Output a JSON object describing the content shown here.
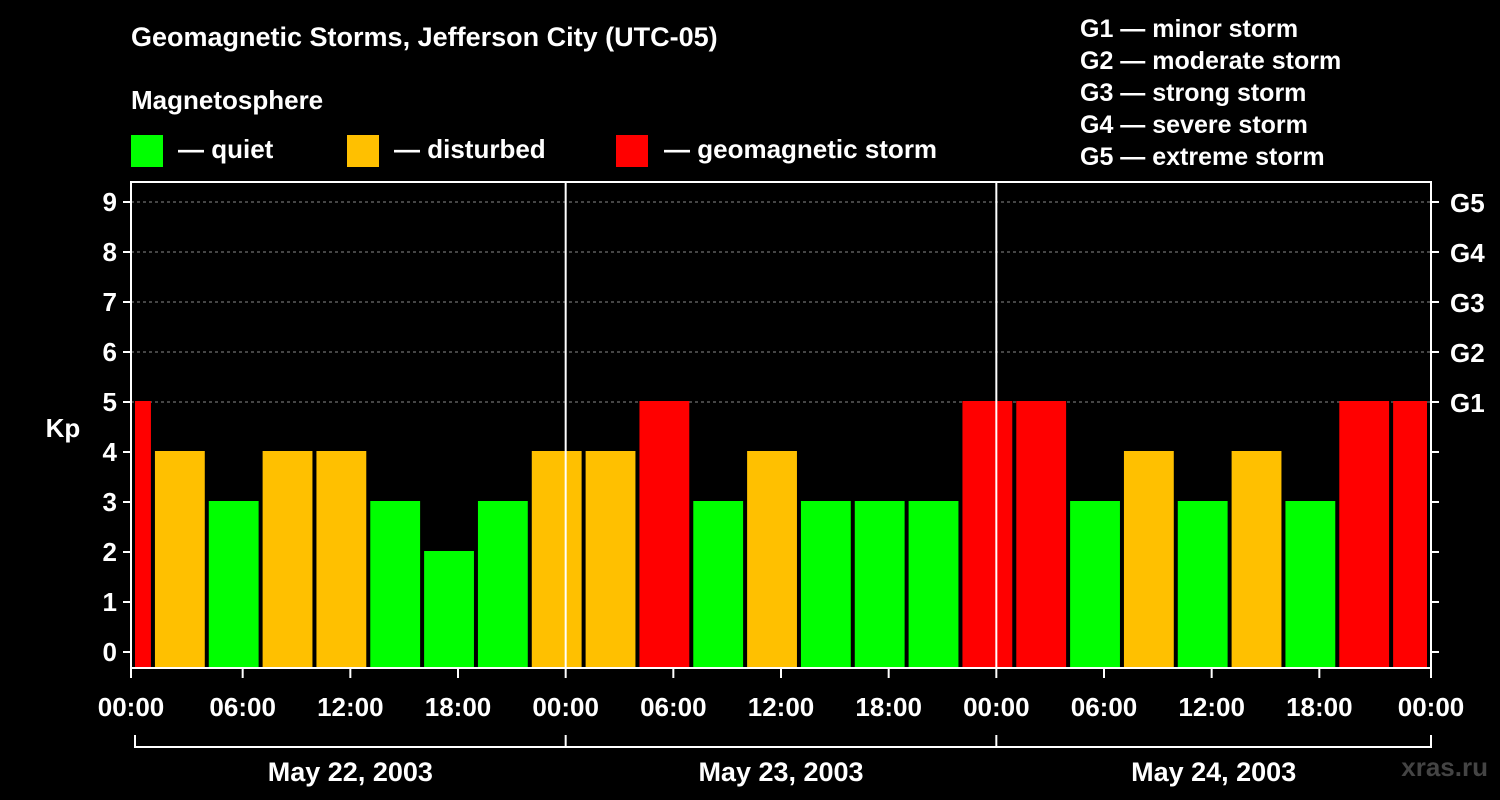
{
  "header": {
    "title": "Geomagnetic Storms, Jefferson City (UTC-05)",
    "magnetosphere_label": "Magnetosphere"
  },
  "legend": {
    "quiet": {
      "label": "— quiet",
      "color": "#00ff00"
    },
    "disturbed": {
      "label": "— disturbed",
      "color": "#ffc000"
    },
    "storm": {
      "label": "— geomagnetic storm",
      "color": "#ff0000"
    }
  },
  "g_scale": [
    "G1 — minor storm",
    "G2 — moderate storm",
    "G3 — strong storm",
    "G4 — severe storm",
    "G5 — extreme storm"
  ],
  "watermark": "xras.ru",
  "chart_data": {
    "type": "bar",
    "ylabel": "Kp",
    "ylim": [
      0,
      9
    ],
    "yticks": [
      "0",
      "1",
      "2",
      "3",
      "4",
      "5",
      "6",
      "7",
      "8",
      "9"
    ],
    "right_ticks": [
      {
        "kp": 5,
        "label": "G1"
      },
      {
        "kp": 6,
        "label": "G2"
      },
      {
        "kp": 7,
        "label": "G3"
      },
      {
        "kp": 8,
        "label": "G4"
      },
      {
        "kp": 9,
        "label": "G5"
      }
    ],
    "grid": "dashed horizontal at 5–9",
    "x_tick_labels": [
      "00:00",
      "06:00",
      "12:00",
      "18:00",
      "00:00",
      "06:00",
      "12:00",
      "18:00",
      "00:00",
      "06:00",
      "12:00",
      "18:00",
      "00:00"
    ],
    "days": [
      "May 22, 2003",
      "May 23, 2003",
      "May 24, 2003"
    ],
    "x_range_hours": [
      0,
      72
    ],
    "bars": [
      {
        "start_hour": 0,
        "end_hour": 1,
        "kp": 5
      },
      {
        "start_hour": 1,
        "end_hour": 4,
        "kp": 4
      },
      {
        "start_hour": 4,
        "end_hour": 7,
        "kp": 3
      },
      {
        "start_hour": 7,
        "end_hour": 10,
        "kp": 4
      },
      {
        "start_hour": 10,
        "end_hour": 13,
        "kp": 4
      },
      {
        "start_hour": 13,
        "end_hour": 16,
        "kp": 3
      },
      {
        "start_hour": 16,
        "end_hour": 19,
        "kp": 2
      },
      {
        "start_hour": 19,
        "end_hour": 22,
        "kp": 3
      },
      {
        "start_hour": 22,
        "end_hour": 25,
        "kp": 4
      },
      {
        "start_hour": 25,
        "end_hour": 28,
        "kp": 4
      },
      {
        "start_hour": 28,
        "end_hour": 31,
        "kp": 5
      },
      {
        "start_hour": 31,
        "end_hour": 34,
        "kp": 3
      },
      {
        "start_hour": 34,
        "end_hour": 37,
        "kp": 4
      },
      {
        "start_hour": 37,
        "end_hour": 40,
        "kp": 3
      },
      {
        "start_hour": 40,
        "end_hour": 43,
        "kp": 3
      },
      {
        "start_hour": 43,
        "end_hour": 46,
        "kp": 3
      },
      {
        "start_hour": 46,
        "end_hour": 49,
        "kp": 5
      },
      {
        "start_hour": 49,
        "end_hour": 52,
        "kp": 5
      },
      {
        "start_hour": 52,
        "end_hour": 55,
        "kp": 3
      },
      {
        "start_hour": 55,
        "end_hour": 58,
        "kp": 4
      },
      {
        "start_hour": 58,
        "end_hour": 61,
        "kp": 3
      },
      {
        "start_hour": 61,
        "end_hour": 64,
        "kp": 4
      },
      {
        "start_hour": 64,
        "end_hour": 67,
        "kp": 3
      },
      {
        "start_hour": 67,
        "end_hour": 70,
        "kp": 5
      },
      {
        "start_hour": 70,
        "end_hour": 72,
        "kp": 5
      }
    ]
  }
}
